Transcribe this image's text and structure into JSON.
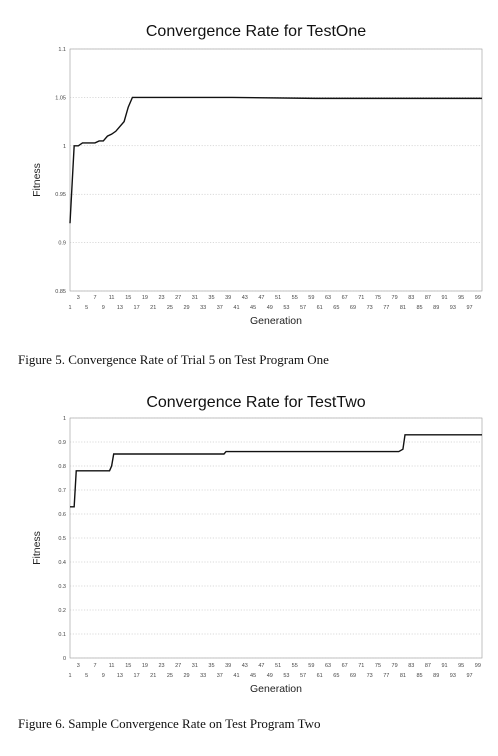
{
  "chart_data": [
    {
      "type": "line",
      "title": "Convergence Rate for TestOne",
      "xlabel": "Generation",
      "ylabel": "Fitness",
      "ylim": [
        0.85,
        1.1
      ],
      "yticks": [
        "0.85",
        "0.9",
        "0.95",
        "1",
        "1.05",
        "1.1"
      ],
      "xlim": [
        1,
        100
      ],
      "xticks_top": [
        "3",
        "7",
        "11",
        "15",
        "19",
        "23",
        "27",
        "31",
        "35",
        "39",
        "43",
        "47",
        "51",
        "55",
        "59",
        "63",
        "67",
        "71",
        "75",
        "79",
        "83",
        "87",
        "91",
        "95",
        "99"
      ],
      "xticks_bottom": [
        "1",
        "5",
        "9",
        "13",
        "17",
        "21",
        "25",
        "29",
        "33",
        "37",
        "41",
        "45",
        "49",
        "53",
        "57",
        "61",
        "65",
        "69",
        "73",
        "77",
        "81",
        "85",
        "89",
        "93",
        "97"
      ],
      "grid": true,
      "series": [
        {
          "x": [
            1,
            2,
            3,
            4,
            5,
            6,
            7,
            8,
            9,
            10,
            11,
            12,
            13,
            14,
            15,
            16,
            17,
            20,
            40,
            60,
            80,
            100
          ],
          "values": [
            0.92,
            1.0,
            1.0,
            1.003,
            1.003,
            1.003,
            1.003,
            1.005,
            1.005,
            1.01,
            1.012,
            1.015,
            1.02,
            1.025,
            1.04,
            1.05,
            1.05,
            1.05,
            1.05,
            1.049,
            1.049,
            1.049
          ]
        }
      ]
    },
    {
      "type": "line",
      "title": "Convergence Rate for TestTwo",
      "xlabel": "Generation",
      "ylabel": "Fitness",
      "ylim": [
        0,
        1
      ],
      "yticks": [
        "0",
        "0.1",
        "0.2",
        "0.3",
        "0.4",
        "0.5",
        "0.6",
        "0.7",
        "0.8",
        "0.9",
        "1"
      ],
      "xlim": [
        1,
        100
      ],
      "xticks_top": [
        "3",
        "7",
        "11",
        "15",
        "19",
        "23",
        "27",
        "31",
        "35",
        "39",
        "43",
        "47",
        "51",
        "55",
        "59",
        "63",
        "67",
        "71",
        "75",
        "79",
        "83",
        "87",
        "91",
        "95",
        "99"
      ],
      "xticks_bottom": [
        "1",
        "5",
        "9",
        "13",
        "17",
        "21",
        "25",
        "29",
        "33",
        "37",
        "41",
        "45",
        "49",
        "53",
        "57",
        "61",
        "65",
        "69",
        "73",
        "77",
        "81",
        "85",
        "89",
        "93",
        "97"
      ],
      "grid": true,
      "series": [
        {
          "x": [
            1,
            1.5,
            2,
            2.5,
            10,
            10.5,
            11,
            11.5,
            20,
            35,
            38,
            38.5,
            39,
            50,
            70,
            80,
            81,
            81.5,
            82,
            100
          ],
          "values": [
            0.63,
            0.63,
            0.63,
            0.78,
            0.78,
            0.78,
            0.8,
            0.85,
            0.85,
            0.85,
            0.85,
            0.86,
            0.86,
            0.86,
            0.86,
            0.86,
            0.87,
            0.93,
            0.93,
            0.93
          ]
        }
      ]
    }
  ],
  "captions": {
    "fig5": "Figure 5.   Convergence Rate of Trial 5 on Test Program One",
    "fig6": "Figure 6.   Sample Convergence Rate on Test Program Two"
  }
}
